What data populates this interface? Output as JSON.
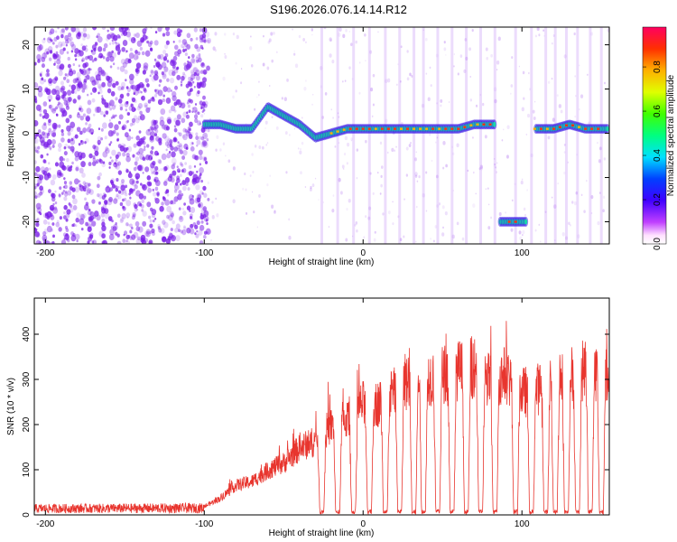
{
  "page_title": "S196.2026.076.14.14.R12",
  "colors": {
    "snr_line": "#e8352e",
    "dot": "#7a1ee8",
    "frame": "#000000",
    "colorbar": [
      "#ffffff",
      "#ff00ff",
      "#8000ff",
      "#0000ff",
      "#00ffff",
      "#00ff00",
      "#ffff00",
      "#ff8000",
      "#ff0000",
      "#ff0040"
    ]
  },
  "chart_data": [
    {
      "type": "heatmap",
      "title": "S196.2026.076.14.14.R12",
      "xlabel": "Height of straight line (km)",
      "ylabel": "Frequency (Hz)",
      "xlim": [
        -207,
        155
      ],
      "ylim": [
        -25,
        24
      ],
      "xticks": [
        -200,
        -100,
        0,
        100
      ],
      "xtick_labels": [
        "-200",
        "-100",
        "0",
        "100"
      ],
      "yticks": [
        20,
        10,
        0,
        -10,
        -20
      ],
      "ytick_labels": [
        "20",
        "10",
        "0",
        "-10",
        "-20"
      ],
      "colorbar": {
        "label": "Normalized spectral amplitude",
        "range": [
          0,
          0.98
        ],
        "ticks": [
          0.0,
          0.2,
          0.4,
          0.6,
          0.8
        ],
        "tick_labels": [
          "0.0",
          "0.2",
          "0.4",
          "0.6",
          "0.8"
        ]
      },
      "ridge": [
        {
          "x": -100,
          "y": 2
        },
        {
          "x": -90,
          "y": 2
        },
        {
          "x": -80,
          "y": 1
        },
        {
          "x": -70,
          "y": 1
        },
        {
          "x": -60,
          "y": 6
        },
        {
          "x": -50,
          "y": 4
        },
        {
          "x": -40,
          "y": 2
        },
        {
          "x": -30,
          "y": -1
        },
        {
          "x": -20,
          "y": 0
        },
        {
          "x": -10,
          "y": 1
        },
        {
          "x": 0,
          "y": 1
        },
        {
          "x": 10,
          "y": 1
        },
        {
          "x": 20,
          "y": 1
        },
        {
          "x": 30,
          "y": 1
        },
        {
          "x": 40,
          "y": 1
        },
        {
          "x": 50,
          "y": 1
        },
        {
          "x": 60,
          "y": 1
        },
        {
          "x": 70,
          "y": 2
        },
        {
          "x": 80,
          "y": 2
        },
        {
          "x": 88,
          "y": -20
        },
        {
          "x": 100,
          "y": -20
        },
        {
          "x": 110,
          "y": 1
        },
        {
          "x": 120,
          "y": 1
        },
        {
          "x": 130,
          "y": 2
        },
        {
          "x": 140,
          "y": 1
        },
        {
          "x": 150,
          "y": 1
        }
      ]
    },
    {
      "type": "line",
      "xlabel": "Height of straight line (km)",
      "ylabel": "SNR (10 * v/v)",
      "xlim": [
        -207,
        155
      ],
      "ylim": [
        0,
        480
      ],
      "xticks": [
        -200,
        -100,
        0,
        100
      ],
      "xtick_labels": [
        "-200",
        "-100",
        "0",
        "100"
      ],
      "yticks": [
        0,
        100,
        200,
        300,
        400
      ],
      "ytick_labels": [
        "0",
        "100",
        "200",
        "300",
        "400"
      ],
      "envelope": [
        {
          "x": -207,
          "y": 20
        },
        {
          "x": -100,
          "y": 22
        },
        {
          "x": -90,
          "y": 45
        },
        {
          "x": -80,
          "y": 80
        },
        {
          "x": -70,
          "y": 90
        },
        {
          "x": -60,
          "y": 120
        },
        {
          "x": -50,
          "y": 140
        },
        {
          "x": -40,
          "y": 180
        },
        {
          "x": -30,
          "y": 200
        },
        {
          "x": -20,
          "y": 240
        },
        {
          "x": -10,
          "y": 260
        },
        {
          "x": 0,
          "y": 300
        },
        {
          "x": 10,
          "y": 300
        },
        {
          "x": 20,
          "y": 330
        },
        {
          "x": 30,
          "y": 360
        },
        {
          "x": 40,
          "y": 370
        },
        {
          "x": 50,
          "y": 380
        },
        {
          "x": 60,
          "y": 390
        },
        {
          "x": 70,
          "y": 400
        },
        {
          "x": 80,
          "y": 360
        },
        {
          "x": 90,
          "y": 380
        },
        {
          "x": 100,
          "y": 330
        },
        {
          "x": 110,
          "y": 340
        },
        {
          "x": 120,
          "y": 380
        },
        {
          "x": 130,
          "y": 380
        },
        {
          "x": 140,
          "y": 390
        },
        {
          "x": 155,
          "y": 380
        }
      ],
      "dropouts_x": [
        -26,
        -16,
        -6,
        4,
        14,
        23,
        32,
        38,
        47,
        56,
        65,
        74,
        83,
        96,
        106,
        115,
        121,
        128,
        135,
        143,
        150
      ]
    }
  ]
}
